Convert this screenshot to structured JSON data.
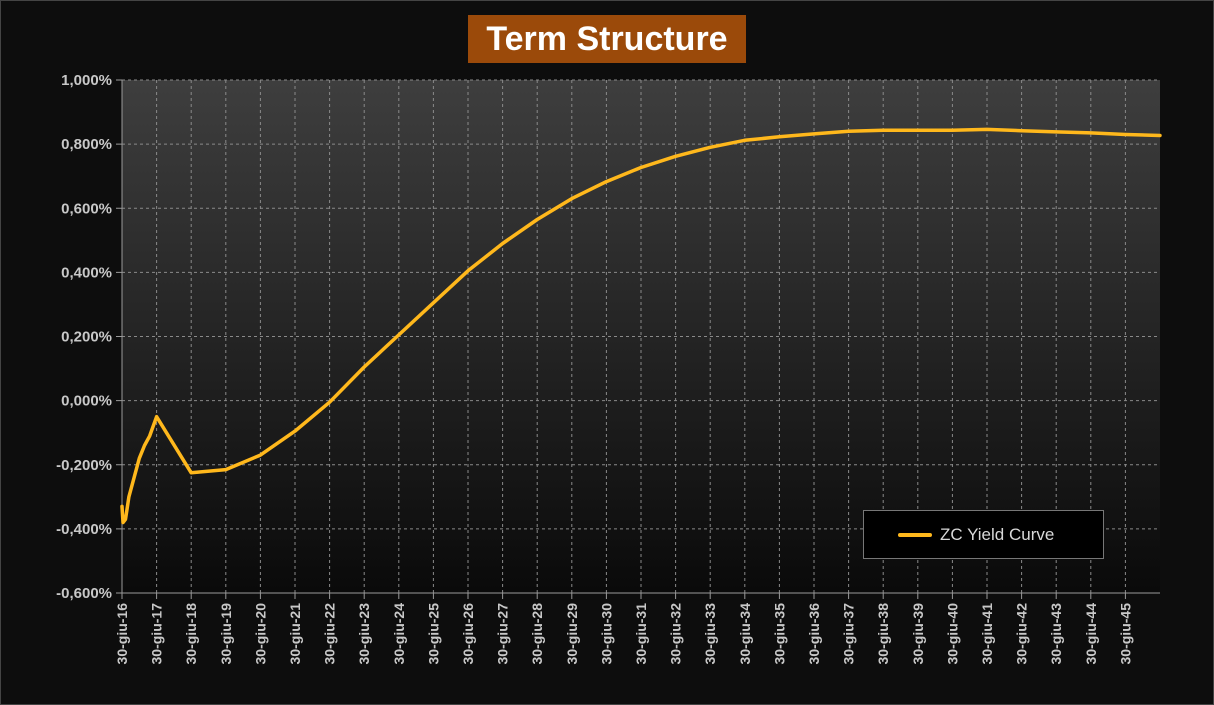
{
  "chart_data": {
    "type": "line",
    "title": "Term Structure",
    "xlabel": "",
    "ylabel": "",
    "ylim": [
      -0.6,
      1.0
    ],
    "yticks": [
      -0.6,
      -0.4,
      -0.2,
      0.0,
      0.2,
      0.4,
      0.6,
      0.8,
      1.0
    ],
    "ytick_labels": [
      "-0,600%",
      "-0,400%",
      "-0,200%",
      "0,000%",
      "0,200%",
      "0,400%",
      "0,600%",
      "0,800%",
      "1,000%"
    ],
    "x_unit": "years",
    "xlim": [
      2016.5,
      2046.5
    ],
    "xticks": [
      2016.5,
      2017.5,
      2018.5,
      2019.5,
      2020.5,
      2021.5,
      2022.5,
      2023.5,
      2024.5,
      2025.5,
      2026.5,
      2027.5,
      2028.5,
      2029.5,
      2030.5,
      2031.5,
      2032.5,
      2033.5,
      2034.5,
      2035.5,
      2036.5,
      2037.5,
      2038.5,
      2039.5,
      2040.5,
      2041.5,
      2042.5,
      2043.5,
      2044.5,
      2045.5
    ],
    "xtick_labels": [
      "30-giu-16",
      "30-giu-17",
      "30-giu-18",
      "30-giu-19",
      "30-giu-20",
      "30-giu-21",
      "30-giu-22",
      "30-giu-23",
      "30-giu-24",
      "30-giu-25",
      "30-giu-26",
      "30-giu-27",
      "30-giu-28",
      "30-giu-29",
      "30-giu-30",
      "30-giu-31",
      "30-giu-32",
      "30-giu-33",
      "30-giu-34",
      "30-giu-35",
      "30-giu-36",
      "30-giu-37",
      "30-giu-38",
      "30-giu-39",
      "30-giu-40",
      "30-giu-41",
      "30-giu-42",
      "30-giu-43",
      "30-giu-44",
      "30-giu-45"
    ],
    "grid": true,
    "legend_position": "bottom-right",
    "series": [
      {
        "name": "ZC Yield Curve",
        "color": "#ffb81c",
        "x": [
          2016.5,
          2016.53,
          2016.6,
          2016.7,
          2016.85,
          2017.0,
          2017.15,
          2017.3,
          2017.5,
          2018.5,
          2019.5,
          2020.5,
          2021.5,
          2022.5,
          2023.5,
          2024.5,
          2025.5,
          2026.5,
          2027.5,
          2028.5,
          2029.5,
          2030.5,
          2031.5,
          2032.5,
          2033.5,
          2034.5,
          2035.5,
          2036.5,
          2037.5,
          2038.5,
          2039.5,
          2040.5,
          2041.5,
          2042.5,
          2043.5,
          2044.5,
          2045.5,
          2046.5
        ],
        "values": [
          -0.33,
          -0.38,
          -0.37,
          -0.3,
          -0.24,
          -0.18,
          -0.14,
          -0.11,
          -0.05,
          -0.225,
          -0.215,
          -0.17,
          -0.095,
          -0.005,
          0.105,
          0.205,
          0.305,
          0.405,
          0.49,
          0.565,
          0.63,
          0.683,
          0.727,
          0.762,
          0.79,
          0.812,
          0.823,
          0.832,
          0.84,
          0.843,
          0.843,
          0.843,
          0.846,
          0.842,
          0.838,
          0.835,
          0.83,
          0.827
        ]
      }
    ]
  }
}
